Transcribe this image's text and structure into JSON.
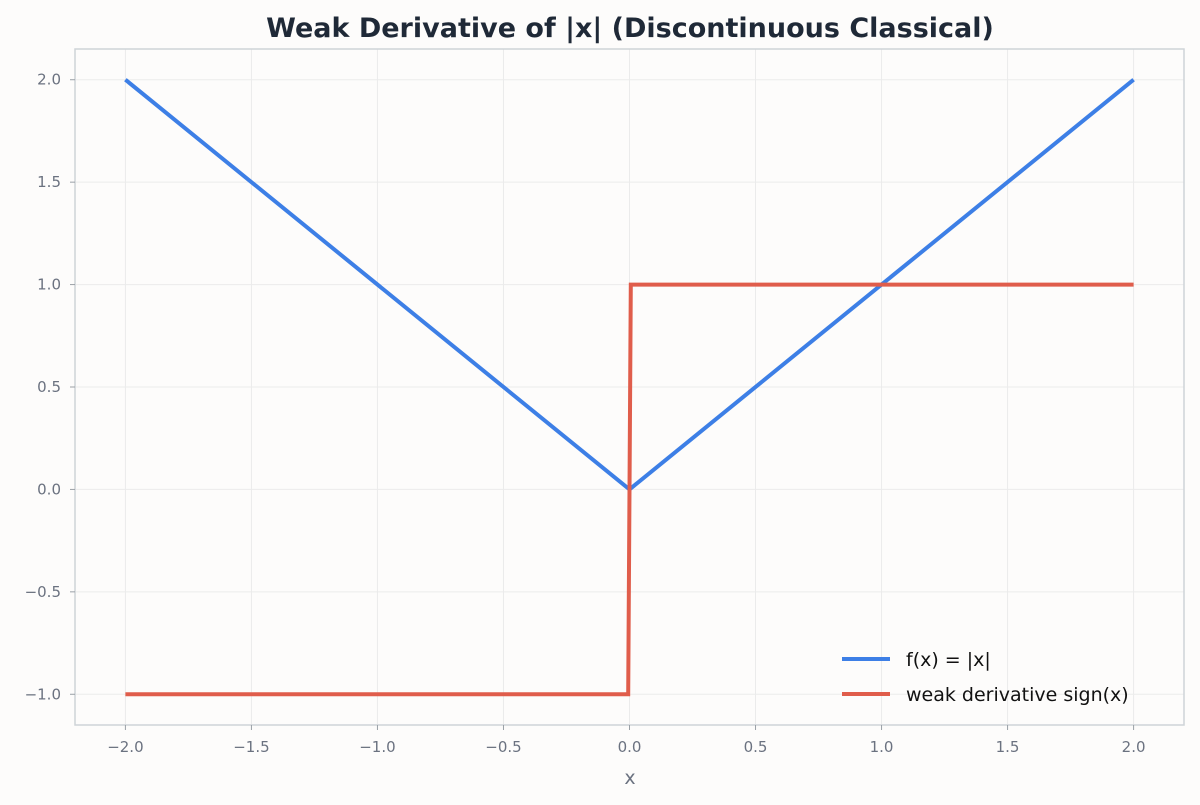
{
  "chart_data": {
    "type": "line",
    "title": "Weak Derivative of |x| (Discontinuous Classical)",
    "xlabel": "x",
    "ylabel": "",
    "xlim": [
      -2.2,
      2.2
    ],
    "ylim": [
      -1.15,
      2.15
    ],
    "x_ticks": [
      -2.0,
      -1.5,
      -1.0,
      -0.5,
      0.0,
      0.5,
      1.0,
      1.5,
      2.0
    ],
    "x_tick_labels": [
      "−2.0",
      "−1.5",
      "−1.0",
      "−0.5",
      "0.0",
      "0.5",
      "1.0",
      "1.5",
      "2.0"
    ],
    "y_ticks": [
      -1.0,
      -0.5,
      0.0,
      0.5,
      1.0,
      1.5,
      2.0
    ],
    "y_tick_labels": [
      "−1.0",
      "−0.5",
      "0.0",
      "0.5",
      "1.0",
      "1.5",
      "2.0"
    ],
    "grid": true,
    "legend_position": "lower-right",
    "series": [
      {
        "name": "f(x) = |x|",
        "color": "#3d7fe6",
        "x": [
          -2.0,
          0.0,
          2.0
        ],
        "y": [
          2.0,
          0.0,
          2.0
        ]
      },
      {
        "name": "weak derivative sign(x)",
        "color": "#e05d4b",
        "x": [
          -2.0,
          -0.005,
          0.005,
          2.0
        ],
        "y": [
          -1.0,
          -1.0,
          1.0,
          1.0
        ]
      }
    ]
  }
}
